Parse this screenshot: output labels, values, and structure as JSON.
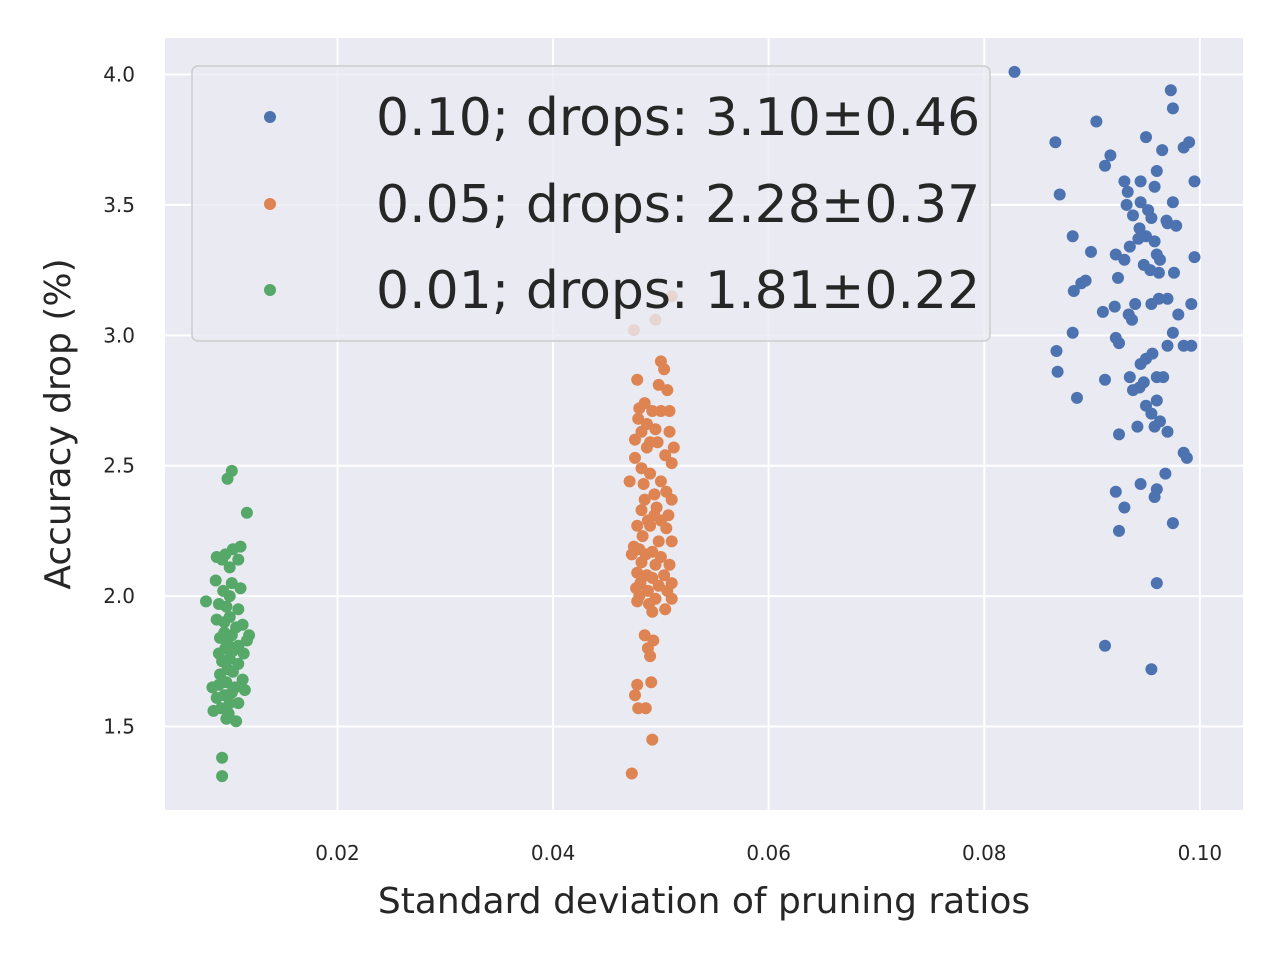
{
  "chart_data": {
    "type": "scatter",
    "title": "",
    "xlabel": "Standard deviation of pruning ratios",
    "ylabel": "Accuracy drop (%)",
    "xlim": [
      0.004,
      0.104
    ],
    "ylim": [
      1.18,
      4.14
    ],
    "xticks": [
      0.02,
      0.04,
      0.06,
      0.08,
      0.1
    ],
    "xtick_labels": [
      "0.02",
      "0.04",
      "0.06",
      "0.08",
      "0.10"
    ],
    "yticks": [
      1.5,
      2.0,
      2.5,
      3.0,
      3.5,
      4.0
    ],
    "ytick_labels": [
      "1.5",
      "2.0",
      "2.5",
      "3.0",
      "3.5",
      "4.0"
    ],
    "grid": true,
    "legend_position": "top",
    "series": [
      {
        "name": "0.10; drops: 3.10±0.46",
        "color": "#4c72b0",
        "points": [
          [
            0.0828,
            4.01
          ],
          [
            0.0973,
            3.94
          ],
          [
            0.0975,
            3.87
          ],
          [
            0.0904,
            3.82
          ],
          [
            0.095,
            3.76
          ],
          [
            0.0866,
            3.74
          ],
          [
            0.099,
            3.74
          ],
          [
            0.0985,
            3.72
          ],
          [
            0.0965,
            3.71
          ],
          [
            0.0917,
            3.69
          ],
          [
            0.0912,
            3.65
          ],
          [
            0.096,
            3.63
          ],
          [
            0.0945,
            3.59
          ],
          [
            0.093,
            3.59
          ],
          [
            0.0995,
            3.59
          ],
          [
            0.0958,
            3.57
          ],
          [
            0.0933,
            3.55
          ],
          [
            0.087,
            3.54
          ],
          [
            0.0945,
            3.51
          ],
          [
            0.0975,
            3.51
          ],
          [
            0.0932,
            3.5
          ],
          [
            0.0952,
            3.48
          ],
          [
            0.0938,
            3.46
          ],
          [
            0.0955,
            3.45
          ],
          [
            0.0969,
            3.44
          ],
          [
            0.097,
            3.43
          ],
          [
            0.0978,
            3.42
          ],
          [
            0.0944,
            3.41
          ],
          [
            0.095,
            3.38
          ],
          [
            0.0882,
            3.38
          ],
          [
            0.0943,
            3.37
          ],
          [
            0.0958,
            3.36
          ],
          [
            0.0935,
            3.34
          ],
          [
            0.0899,
            3.32
          ],
          [
            0.096,
            3.31
          ],
          [
            0.0922,
            3.31
          ],
          [
            0.0963,
            3.29
          ],
          [
            0.093,
            3.29
          ],
          [
            0.0995,
            3.3
          ],
          [
            0.0948,
            3.27
          ],
          [
            0.0954,
            3.25
          ],
          [
            0.0976,
            3.24
          ],
          [
            0.0962,
            3.24
          ],
          [
            0.0924,
            3.22
          ],
          [
            0.0894,
            3.21
          ],
          [
            0.089,
            3.2
          ],
          [
            0.0883,
            3.17
          ],
          [
            0.097,
            3.14
          ],
          [
            0.0962,
            3.14
          ],
          [
            0.0955,
            3.12
          ],
          [
            0.094,
            3.12
          ],
          [
            0.0992,
            3.12
          ],
          [
            0.0921,
            3.11
          ],
          [
            0.091,
            3.09
          ],
          [
            0.0934,
            3.08
          ],
          [
            0.098,
            3.08
          ],
          [
            0.0937,
            3.06
          ],
          [
            0.0882,
            3.01
          ],
          [
            0.0975,
            3.01
          ],
          [
            0.0922,
            2.99
          ],
          [
            0.0925,
            2.97
          ],
          [
            0.097,
            2.96
          ],
          [
            0.0985,
            2.96
          ],
          [
            0.0992,
            2.96
          ],
          [
            0.0867,
            2.94
          ],
          [
            0.0956,
            2.93
          ],
          [
            0.095,
            2.91
          ],
          [
            0.0945,
            2.89
          ],
          [
            0.0868,
            2.86
          ],
          [
            0.096,
            2.84
          ],
          [
            0.0935,
            2.84
          ],
          [
            0.0912,
            2.83
          ],
          [
            0.0948,
            2.82
          ],
          [
            0.0966,
            2.84
          ],
          [
            0.0944,
            2.8
          ],
          [
            0.0938,
            2.79
          ],
          [
            0.0886,
            2.76
          ],
          [
            0.096,
            2.75
          ],
          [
            0.095,
            2.73
          ],
          [
            0.0955,
            2.7
          ],
          [
            0.0942,
            2.65
          ],
          [
            0.0963,
            2.67
          ],
          [
            0.0958,
            2.65
          ],
          [
            0.097,
            2.63
          ],
          [
            0.0925,
            2.62
          ],
          [
            0.0985,
            2.55
          ],
          [
            0.0988,
            2.53
          ],
          [
            0.0968,
            2.47
          ],
          [
            0.0945,
            2.43
          ],
          [
            0.096,
            2.41
          ],
          [
            0.0922,
            2.4
          ],
          [
            0.0958,
            2.38
          ],
          [
            0.093,
            2.34
          ],
          [
            0.0975,
            2.28
          ],
          [
            0.0925,
            2.25
          ],
          [
            0.096,
            2.05
          ],
          [
            0.0912,
            1.81
          ],
          [
            0.0955,
            1.72
          ]
        ]
      },
      {
        "name": "0.05; drops: 2.28±0.37",
        "color": "#dd8452",
        "points": [
          [
            0.051,
            3.15
          ],
          [
            0.0495,
            3.06
          ],
          [
            0.0475,
            3.02
          ],
          [
            0.05,
            2.9
          ],
          [
            0.0503,
            2.87
          ],
          [
            0.0478,
            2.83
          ],
          [
            0.0498,
            2.81
          ],
          [
            0.0506,
            2.79
          ],
          [
            0.0485,
            2.74
          ],
          [
            0.048,
            2.72
          ],
          [
            0.0492,
            2.71
          ],
          [
            0.05,
            2.71
          ],
          [
            0.0508,
            2.71
          ],
          [
            0.0479,
            2.68
          ],
          [
            0.0487,
            2.66
          ],
          [
            0.0495,
            2.64
          ],
          [
            0.0482,
            2.63
          ],
          [
            0.0508,
            2.63
          ],
          [
            0.0476,
            2.6
          ],
          [
            0.049,
            2.59
          ],
          [
            0.0497,
            2.59
          ],
          [
            0.0487,
            2.57
          ],
          [
            0.0512,
            2.57
          ],
          [
            0.0504,
            2.54
          ],
          [
            0.0476,
            2.53
          ],
          [
            0.051,
            2.51
          ],
          [
            0.0482,
            2.49
          ],
          [
            0.049,
            2.47
          ],
          [
            0.0471,
            2.44
          ],
          [
            0.05,
            2.44
          ],
          [
            0.0484,
            2.43
          ],
          [
            0.0505,
            2.4
          ],
          [
            0.0494,
            2.39
          ],
          [
            0.0485,
            2.37
          ],
          [
            0.051,
            2.37
          ],
          [
            0.0496,
            2.34
          ],
          [
            0.0482,
            2.33
          ],
          [
            0.0507,
            2.31
          ],
          [
            0.0494,
            2.31
          ],
          [
            0.0488,
            2.29
          ],
          [
            0.05,
            2.29
          ],
          [
            0.0478,
            2.27
          ],
          [
            0.049,
            2.27
          ],
          [
            0.0505,
            2.26
          ],
          [
            0.0483,
            2.23
          ],
          [
            0.0498,
            2.21
          ],
          [
            0.0475,
            2.19
          ],
          [
            0.051,
            2.21
          ],
          [
            0.048,
            2.18
          ],
          [
            0.0492,
            2.17
          ],
          [
            0.0486,
            2.16
          ],
          [
            0.05,
            2.15
          ],
          [
            0.0473,
            2.16
          ],
          [
            0.0482,
            2.13
          ],
          [
            0.0495,
            2.12
          ],
          [
            0.0508,
            2.12
          ],
          [
            0.0478,
            2.09
          ],
          [
            0.0487,
            2.08
          ],
          [
            0.0503,
            2.08
          ],
          [
            0.0492,
            2.07
          ],
          [
            0.0481,
            2.05
          ],
          [
            0.051,
            2.05
          ],
          [
            0.0498,
            2.04
          ],
          [
            0.0477,
            2.03
          ],
          [
            0.0488,
            2.02
          ],
          [
            0.0506,
            2.02
          ],
          [
            0.048,
            2.0
          ],
          [
            0.0495,
            1.99
          ],
          [
            0.051,
            1.99
          ],
          [
            0.0478,
            1.98
          ],
          [
            0.0489,
            1.97
          ],
          [
            0.0504,
            1.95
          ],
          [
            0.0492,
            1.94
          ],
          [
            0.0485,
            1.85
          ],
          [
            0.0493,
            1.83
          ],
          [
            0.0488,
            1.8
          ],
          [
            0.049,
            1.77
          ],
          [
            0.0491,
            1.67
          ],
          [
            0.0478,
            1.66
          ],
          [
            0.0476,
            1.62
          ],
          [
            0.0479,
            1.57
          ],
          [
            0.0486,
            1.57
          ],
          [
            0.0492,
            1.45
          ],
          [
            0.0473,
            1.32
          ]
        ]
      },
      {
        "name": "0.01; drops: 1.81±0.22",
        "color": "#55a868",
        "points": [
          [
            0.0102,
            2.48
          ],
          [
            0.0098,
            2.45
          ],
          [
            0.0116,
            2.32
          ],
          [
            0.011,
            2.19
          ],
          [
            0.0103,
            2.18
          ],
          [
            0.0096,
            2.16
          ],
          [
            0.0088,
            2.15
          ],
          [
            0.0108,
            2.14
          ],
          [
            0.0093,
            2.14
          ],
          [
            0.01,
            2.11
          ],
          [
            0.0087,
            2.06
          ],
          [
            0.0102,
            2.05
          ],
          [
            0.011,
            2.03
          ],
          [
            0.0094,
            2.02
          ],
          [
            0.01,
            2.0
          ],
          [
            0.0078,
            1.98
          ],
          [
            0.009,
            1.97
          ],
          [
            0.0097,
            1.96
          ],
          [
            0.0108,
            1.95
          ],
          [
            0.01,
            1.92
          ],
          [
            0.0088,
            1.91
          ],
          [
            0.0095,
            1.9
          ],
          [
            0.0112,
            1.89
          ],
          [
            0.0106,
            1.88
          ],
          [
            0.0095,
            1.86
          ],
          [
            0.0102,
            1.85
          ],
          [
            0.0118,
            1.85
          ],
          [
            0.0091,
            1.84
          ],
          [
            0.0116,
            1.83
          ],
          [
            0.0098,
            1.82
          ],
          [
            0.0108,
            1.81
          ],
          [
            0.0096,
            1.8
          ],
          [
            0.0103,
            1.79
          ],
          [
            0.009,
            1.78
          ],
          [
            0.0113,
            1.78
          ],
          [
            0.01,
            1.76
          ],
          [
            0.0093,
            1.75
          ],
          [
            0.0108,
            1.74
          ],
          [
            0.0098,
            1.72
          ],
          [
            0.0103,
            1.71
          ],
          [
            0.0091,
            1.7
          ],
          [
            0.0112,
            1.68
          ],
          [
            0.0097,
            1.67
          ],
          [
            0.009,
            1.66
          ],
          [
            0.0084,
            1.65
          ],
          [
            0.0105,
            1.65
          ],
          [
            0.0114,
            1.64
          ],
          [
            0.0102,
            1.63
          ],
          [
            0.0095,
            1.62
          ],
          [
            0.0088,
            1.61
          ],
          [
            0.01,
            1.59
          ],
          [
            0.0108,
            1.59
          ],
          [
            0.0092,
            1.57
          ],
          [
            0.0085,
            1.56
          ],
          [
            0.0099,
            1.55
          ],
          [
            0.0097,
            1.53
          ],
          [
            0.0106,
            1.52
          ],
          [
            0.0093,
            1.38
          ],
          [
            0.0093,
            1.31
          ]
        ]
      }
    ]
  }
}
